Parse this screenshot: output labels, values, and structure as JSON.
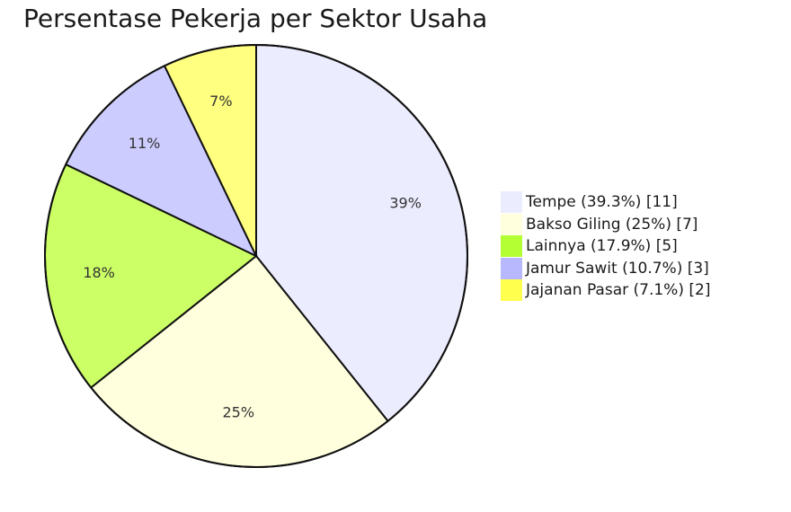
{
  "chart_data": {
    "type": "pie",
    "title": "Persentase Pekerja per Sektor Usaha",
    "slices": [
      {
        "label": "Tempe",
        "value": 11,
        "percent_label": "39%",
        "legend": "Tempe (39.3%) [11]",
        "color": "#ececff"
      },
      {
        "label": "Bakso Giling",
        "value": 7,
        "percent_label": "25%",
        "legend": "Bakso Giling (25%) [7]",
        "color": "#ffffde"
      },
      {
        "label": "Lainnya",
        "value": 5,
        "percent_label": "18%",
        "legend": "Lainnya (17.9%) [5]",
        "color": "#ccff66"
      },
      {
        "label": "Jamur Sawit",
        "value": 3,
        "percent_label": "11%",
        "legend": "Jamur Sawit (10.7%) [3]",
        "color": "#ccccff"
      },
      {
        "label": "Jajanan Pasar",
        "value": 2,
        "percent_label": "7%",
        "legend": "Jajanan Pasar (7.1%) [2]",
        "color": "#ffff80"
      }
    ],
    "legend_swatch_colors": [
      "#ececff",
      "#ffffde",
      "#b3ff33",
      "#b8b8ff",
      "#ffff4d"
    ],
    "legend_position": "right",
    "start": "top",
    "direction": "clockwise"
  }
}
